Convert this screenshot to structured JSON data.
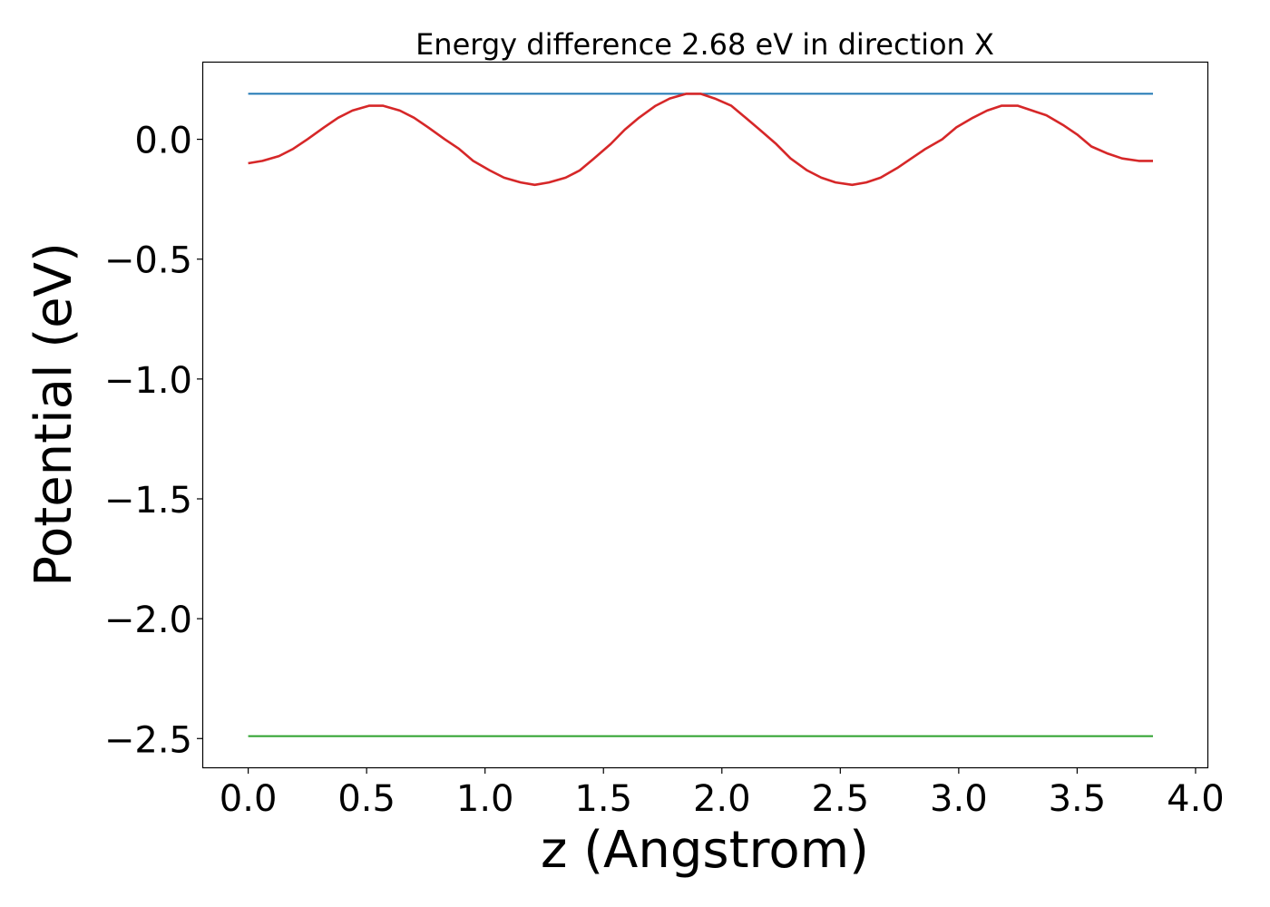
{
  "chart_data": {
    "type": "line",
    "title": "Energy difference 2.68 eV in direction X",
    "xlabel": "z (Angstrom)",
    "ylabel": "Potential (eV)",
    "xlim": [
      -0.19,
      4.05
    ],
    "ylim": [
      -2.62,
      0.32
    ],
    "x_ticks": [
      0.0,
      0.5,
      1.0,
      1.5,
      2.0,
      2.5,
      3.0,
      3.5,
      4.0
    ],
    "x_tick_labels": [
      "0.0",
      "0.5",
      "1.0",
      "1.5",
      "2.0",
      "2.5",
      "3.0",
      "3.5",
      "4.0"
    ],
    "y_ticks": [
      0.0,
      -0.5,
      -1.0,
      -1.5,
      -2.0,
      -2.5
    ],
    "y_tick_labels": [
      "0.0",
      "−0.5",
      "−1.0",
      "−1.5",
      "−2.0",
      "−2.5"
    ],
    "grid": false,
    "series": [
      {
        "color": "#1f77b4",
        "x": [
          0.0,
          3.82
        ],
        "y": [
          0.19,
          0.19
        ]
      },
      {
        "color": "#d62728",
        "x": [
          0.0,
          0.06,
          0.13,
          0.19,
          0.25,
          0.32,
          0.38,
          0.44,
          0.51,
          0.57,
          0.64,
          0.7,
          0.76,
          0.83,
          0.89,
          0.95,
          1.02,
          1.08,
          1.15,
          1.21,
          1.27,
          1.34,
          1.4,
          1.46,
          1.53,
          1.59,
          1.65,
          1.72,
          1.78,
          1.85,
          1.91,
          1.97,
          2.04,
          2.1,
          2.16,
          2.23,
          2.29,
          2.36,
          2.42,
          2.48,
          2.55,
          2.61,
          2.67,
          2.74,
          2.8,
          2.86,
          2.93,
          2.99,
          3.06,
          3.12,
          3.18,
          3.25,
          3.31,
          3.37,
          3.44,
          3.5,
          3.56,
          3.63,
          3.69,
          3.76,
          3.82
        ],
        "y": [
          -0.1,
          -0.09,
          -0.07,
          -0.04,
          0.0,
          0.05,
          0.09,
          0.12,
          0.14,
          0.14,
          0.12,
          0.09,
          0.05,
          0.0,
          -0.04,
          -0.09,
          -0.13,
          -0.16,
          -0.18,
          -0.19,
          -0.18,
          -0.16,
          -0.13,
          -0.08,
          -0.02,
          0.04,
          0.09,
          0.14,
          0.17,
          0.19,
          0.19,
          0.17,
          0.14,
          0.09,
          0.04,
          -0.02,
          -0.08,
          -0.13,
          -0.16,
          -0.18,
          -0.19,
          -0.18,
          -0.16,
          -0.12,
          -0.08,
          -0.04,
          0.0,
          0.05,
          0.09,
          0.12,
          0.14,
          0.14,
          0.12,
          0.1,
          0.06,
          0.02,
          -0.03,
          -0.06,
          -0.08,
          -0.09,
          -0.09
        ]
      },
      {
        "color": "#2ca02c",
        "x": [
          0.0,
          3.82
        ],
        "y": [
          -2.49,
          -2.49
        ]
      }
    ]
  }
}
